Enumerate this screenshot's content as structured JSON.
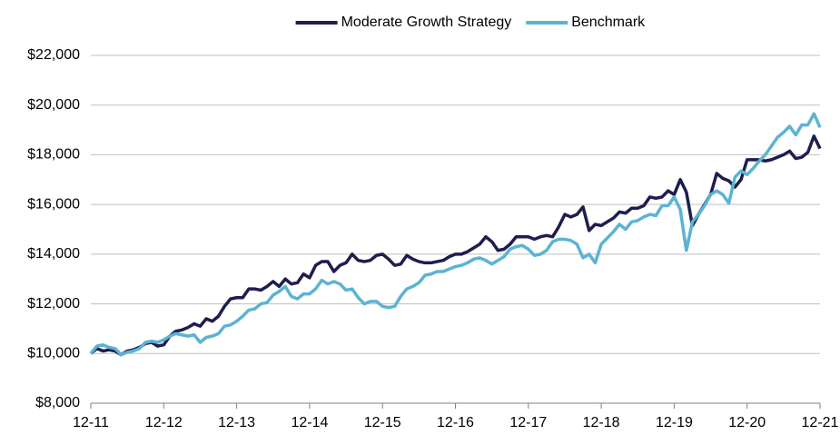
{
  "chart_data": {
    "type": "line",
    "x": [
      0,
      1,
      2,
      3,
      4,
      5,
      6,
      7,
      8,
      9,
      10,
      11,
      12,
      13,
      14,
      15,
      16,
      17,
      18,
      19,
      20,
      21,
      22,
      23,
      24,
      25,
      26,
      27,
      28,
      29,
      30,
      31,
      32,
      33,
      34,
      35,
      36,
      37,
      38,
      39,
      40,
      41,
      42,
      43,
      44,
      45,
      46,
      47,
      48,
      49,
      50,
      51,
      52,
      53,
      54,
      55,
      56,
      57,
      58,
      59,
      60,
      61,
      62,
      63,
      64,
      65,
      66,
      67,
      68,
      69,
      70,
      71,
      72,
      73,
      74,
      75,
      76,
      77,
      78,
      79,
      80,
      81,
      82,
      83,
      84,
      85,
      86,
      87,
      88,
      89,
      90,
      91,
      92,
      93,
      94,
      95,
      96,
      97,
      98,
      99,
      100,
      101,
      102,
      103,
      104,
      105,
      106,
      107,
      108,
      109,
      110,
      111,
      112,
      113,
      114,
      115,
      116,
      117,
      118,
      119,
      120
    ],
    "series": [
      {
        "name": "Moderate Growth Strategy",
        "color": "#1f1d4e",
        "values": [
          10000,
          10200,
          10100,
          10150,
          10100,
          9950,
          10100,
          10150,
          10250,
          10400,
          10450,
          10300,
          10350,
          10700,
          10900,
          10950,
          11050,
          11200,
          11100,
          11400,
          11300,
          11500,
          11900,
          12200,
          12250,
          12250,
          12600,
          12600,
          12550,
          12700,
          12900,
          12700,
          13000,
          12800,
          12850,
          13200,
          13050,
          13550,
          13700,
          13700,
          13300,
          13550,
          13650,
          14000,
          13750,
          13700,
          13750,
          13950,
          14000,
          13800,
          13550,
          13600,
          13950,
          13800,
          13700,
          13650,
          13650,
          13700,
          13750,
          13900,
          14000,
          14000,
          14100,
          14250,
          14400,
          14700,
          14500,
          14150,
          14200,
          14400,
          14700,
          14700,
          14700,
          14600,
          14700,
          14750,
          14700,
          15100,
          15600,
          15500,
          15600,
          15900,
          14950,
          15200,
          15150,
          15300,
          15450,
          15700,
          15650,
          15850,
          15850,
          15950,
          16300,
          16250,
          16300,
          16550,
          16400,
          17000,
          16500,
          15150,
          15600,
          16000,
          16400,
          17250,
          17050,
          16950,
          16700,
          17000,
          17800,
          17800,
          17800,
          17750,
          17800,
          17900,
          18000,
          18150,
          17850,
          17900,
          18100,
          18750,
          18250
        ]
      },
      {
        "name": "Benchmark",
        "color": "#5bb4d1",
        "values": [
          10000,
          10300,
          10350,
          10250,
          10200,
          9950,
          10050,
          10100,
          10200,
          10450,
          10500,
          10450,
          10550,
          10700,
          10800,
          10750,
          10700,
          10750,
          10450,
          10650,
          10700,
          10800,
          11100,
          11150,
          11300,
          11500,
          11750,
          11800,
          12000,
          12050,
          12350,
          12500,
          12700,
          12300,
          12200,
          12400,
          12400,
          12600,
          12950,
          12800,
          12900,
          12800,
          12550,
          12600,
          12250,
          12000,
          12100,
          12100,
          11900,
          11850,
          11900,
          12300,
          12600,
          12700,
          12850,
          13150,
          13200,
          13300,
          13300,
          13400,
          13500,
          13550,
          13650,
          13800,
          13850,
          13750,
          13600,
          13750,
          13900,
          14200,
          14300,
          14350,
          14200,
          13950,
          14000,
          14150,
          14500,
          14600,
          14600,
          14550,
          14400,
          13850,
          14000,
          13650,
          14400,
          14650,
          14900,
          15200,
          15000,
          15300,
          15350,
          15500,
          15600,
          15550,
          15950,
          15950,
          16300,
          15800,
          14150,
          15300,
          15600,
          15950,
          16400,
          16550,
          16400,
          16050,
          17100,
          17350,
          17200,
          17450,
          17750,
          18000,
          18350,
          18700,
          18900,
          19150,
          18800,
          19200,
          19200,
          19650,
          19100
        ]
      }
    ],
    "xlim": [
      0,
      120
    ],
    "xticks": [
      {
        "value": 0,
        "label": "12-11"
      },
      {
        "value": 12,
        "label": "12-12"
      },
      {
        "value": 24,
        "label": "12-13"
      },
      {
        "value": 36,
        "label": "12-14"
      },
      {
        "value": 48,
        "label": "12-15"
      },
      {
        "value": 60,
        "label": "12-16"
      },
      {
        "value": 72,
        "label": "12-17"
      },
      {
        "value": 84,
        "label": "12-18"
      },
      {
        "value": 96,
        "label": "12-19"
      },
      {
        "value": 108,
        "label": "12-20"
      },
      {
        "value": 120,
        "label": "12-21"
      }
    ],
    "ylim": [
      8000,
      22000
    ],
    "yticks": [
      {
        "value": 8000,
        "label": "$8,000"
      },
      {
        "value": 10000,
        "label": "$10,000"
      },
      {
        "value": 12000,
        "label": "$12,000"
      },
      {
        "value": 14000,
        "label": "$14,000"
      },
      {
        "value": 16000,
        "label": "$16,000"
      },
      {
        "value": 18000,
        "label": "$18,000"
      },
      {
        "value": 20000,
        "label": "$20,000"
      },
      {
        "value": 22000,
        "label": "$22,000"
      }
    ],
    "grid": true,
    "legend": "top"
  }
}
